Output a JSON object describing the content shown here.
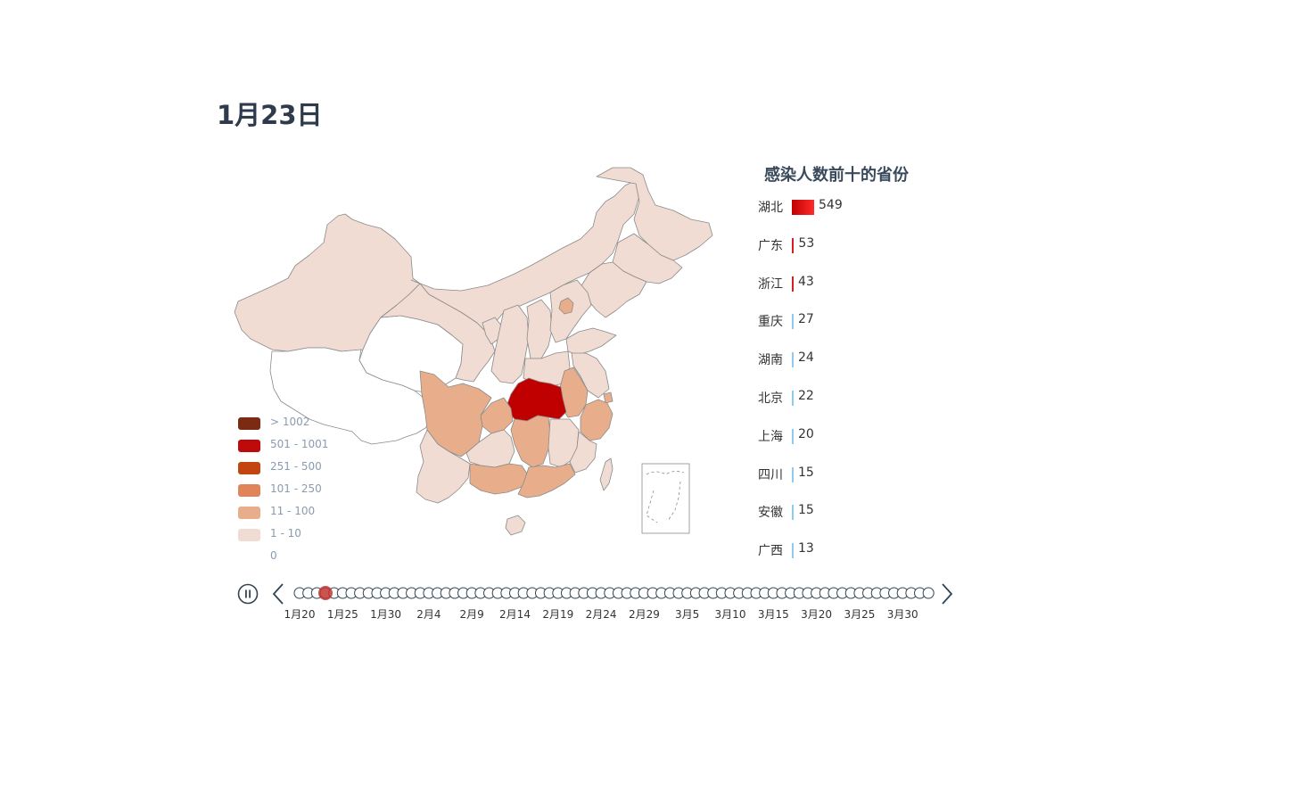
{
  "title": "1月23日",
  "bar_title": "感染人数前十的省份",
  "colors": {
    "hubei": "#c00000",
    "band_high": "#e8ae8c",
    "band_low": "#f0dcd2",
    "none": "#ffffff",
    "border": "#8a8a8a",
    "timeline": "#304654",
    "active_dot": "#c23531"
  },
  "legend": [
    {
      "label": "> 1002",
      "color": "#7b2b12"
    },
    {
      "label": "501 - 1001",
      "color": "#be0a0a"
    },
    {
      "label": "251 - 500",
      "color": "#c2440f"
    },
    {
      "label": "101 - 250",
      "color": "#e0845a"
    },
    {
      "label": "11 - 100",
      "color": "#e8ae8c"
    },
    {
      "label": "1 - 10",
      "color": "#f0dcd2"
    },
    {
      "label": "0",
      "color": "#ffffff"
    }
  ],
  "chart_data": {
    "type": "bar",
    "title": "感染人数前十的省份",
    "categories": [
      "湖北",
      "广东",
      "浙江",
      "重庆",
      "湖南",
      "北京",
      "上海",
      "四川",
      "安徽",
      "广西"
    ],
    "values": [
      549,
      53,
      43,
      27,
      24,
      22,
      20,
      15,
      15,
      13
    ],
    "bar_colors": [
      "#d40000",
      "#d42020",
      "#d42020",
      "#8fcbef",
      "#8fcbef",
      "#8fcbef",
      "#8fcbef",
      "#8fcbef",
      "#8fcbef",
      "#8fcbef"
    ]
  },
  "timeline": {
    "labels": [
      "1月20",
      "1月25",
      "1月30",
      "2月4",
      "2月9",
      "2月14",
      "2月19",
      "2月24",
      "2月29",
      "3月5",
      "3月10",
      "3月15",
      "3月20",
      "3月25",
      "3月30"
    ],
    "total_dots": 74,
    "current_index": 3,
    "current_label": "1月23日",
    "play_icon": "pause-icon",
    "prev_icon": "chevron-left-icon",
    "next_icon": "chevron-right-icon"
  }
}
